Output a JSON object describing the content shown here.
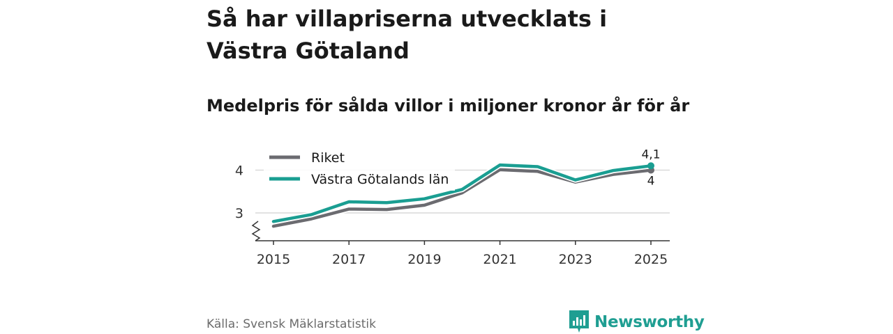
{
  "title": "Så har villapriserna utvecklats i Västra Götaland",
  "subtitle": "Medelpris för sålda villor i miljoner kronor år för år",
  "source": "Källa: Svensk Mäklarstatistik",
  "brand": {
    "name": "Newsworthy",
    "color": "#1f9e92"
  },
  "chart_data": {
    "type": "line",
    "title": "Medelpris för sålda villor i miljoner kronor år för år",
    "xlabel": "",
    "ylabel": "",
    "x": [
      2015,
      2016,
      2017,
      2018,
      2019,
      2020,
      2021,
      2022,
      2023,
      2024,
      2025
    ],
    "x_ticks": [
      "2015",
      "2017",
      "2019",
      "2021",
      "2023",
      "2025"
    ],
    "y_ticks": [
      "3",
      "4"
    ],
    "ylim": [
      2.35,
      4.3
    ],
    "grid": true,
    "legend_position": "top-left",
    "series": [
      {
        "name": "Riket",
        "color": "#6b6b70",
        "values": [
          2.69,
          2.86,
          3.09,
          3.08,
          3.18,
          3.47,
          4.01,
          3.97,
          3.72,
          3.9,
          4.0
        ],
        "end_label": "4"
      },
      {
        "name": "Västra Götalands län",
        "color": "#1a9e92",
        "values": [
          2.8,
          2.96,
          3.26,
          3.24,
          3.33,
          3.55,
          4.12,
          4.08,
          3.77,
          3.99,
          4.1
        ],
        "end_label": "4,1"
      }
    ]
  }
}
